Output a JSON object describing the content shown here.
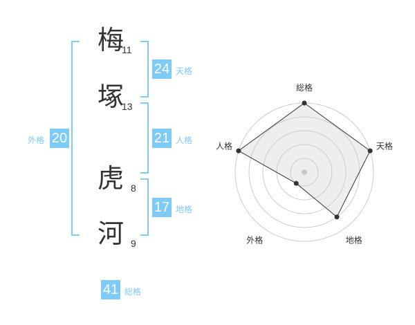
{
  "name": [
    {
      "char": "梅",
      "strokes": "11"
    },
    {
      "char": "塚",
      "strokes": "13"
    },
    {
      "char": "虎",
      "strokes": "8"
    },
    {
      "char": "河",
      "strokes": "9"
    }
  ],
  "kaku": {
    "tenkaku": {
      "label": "天格",
      "value": "24"
    },
    "jinkaku": {
      "label": "人格",
      "value": "21"
    },
    "chikaku": {
      "label": "地格",
      "value": "17"
    },
    "gaikaku": {
      "label": "外格",
      "value": "20"
    },
    "soukaku": {
      "label": "総格",
      "value": "41"
    }
  },
  "accent_color": "#7fcbf7",
  "chart_data": {
    "type": "radar",
    "axes": [
      "総格",
      "天格",
      "地格",
      "外格",
      "人格"
    ],
    "values": [
      5,
      5,
      4,
      1,
      5
    ],
    "range": [
      0,
      5
    ],
    "rings": 5
  }
}
